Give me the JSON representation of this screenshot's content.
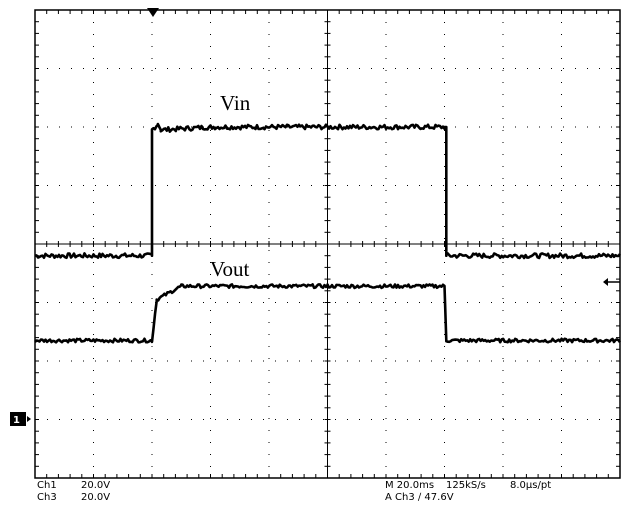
{
  "chart_data": {
    "type": "line",
    "title": "",
    "xlabel": "",
    "ylabel": "",
    "grid": true,
    "x_divisions": 10,
    "y_divisions": 8,
    "xlim": [
      -5,
      5
    ],
    "ylim": [
      -4,
      4
    ],
    "x_units": "divisions",
    "y_units": "divisions",
    "trigger_marker": "top arrow at x = -3.0 div",
    "channel_marker": "1",
    "series": [
      {
        "name": "Vin",
        "label": "Vin",
        "points": [
          [
            -5.0,
            -0.2
          ],
          [
            -3.0,
            -0.2
          ],
          [
            -3.0,
            1.95
          ],
          [
            -2.9,
            2.05
          ],
          [
            -2.85,
            1.95
          ],
          [
            -2.0,
            2.0
          ],
          [
            2.0,
            2.0
          ],
          [
            2.03,
            2.0
          ],
          [
            2.03,
            -0.2
          ],
          [
            5.0,
            -0.2
          ]
        ],
        "noise": 0.04
      },
      {
        "name": "Vout",
        "label": "Vout",
        "points": [
          [
            -5.0,
            -1.65
          ],
          [
            -3.0,
            -1.65
          ],
          [
            -2.92,
            -0.95
          ],
          [
            -2.5,
            -0.72
          ],
          [
            0.0,
            -0.72
          ],
          [
            2.0,
            -0.72
          ],
          [
            2.03,
            -1.65
          ],
          [
            5.0,
            -1.65
          ]
        ],
        "noise": 0.03
      }
    ],
    "status_bar": {
      "ch1_name": "Ch1",
      "ch1_scale": "20.0V",
      "ch3_name": "Ch3",
      "ch3_scale": "20.0V",
      "timebase": "M 20.0ms",
      "sample_rate": "125kS/s",
      "resolution": "8.0µs/pt",
      "trigger": "A  Ch3  ∕  47.6V"
    }
  }
}
